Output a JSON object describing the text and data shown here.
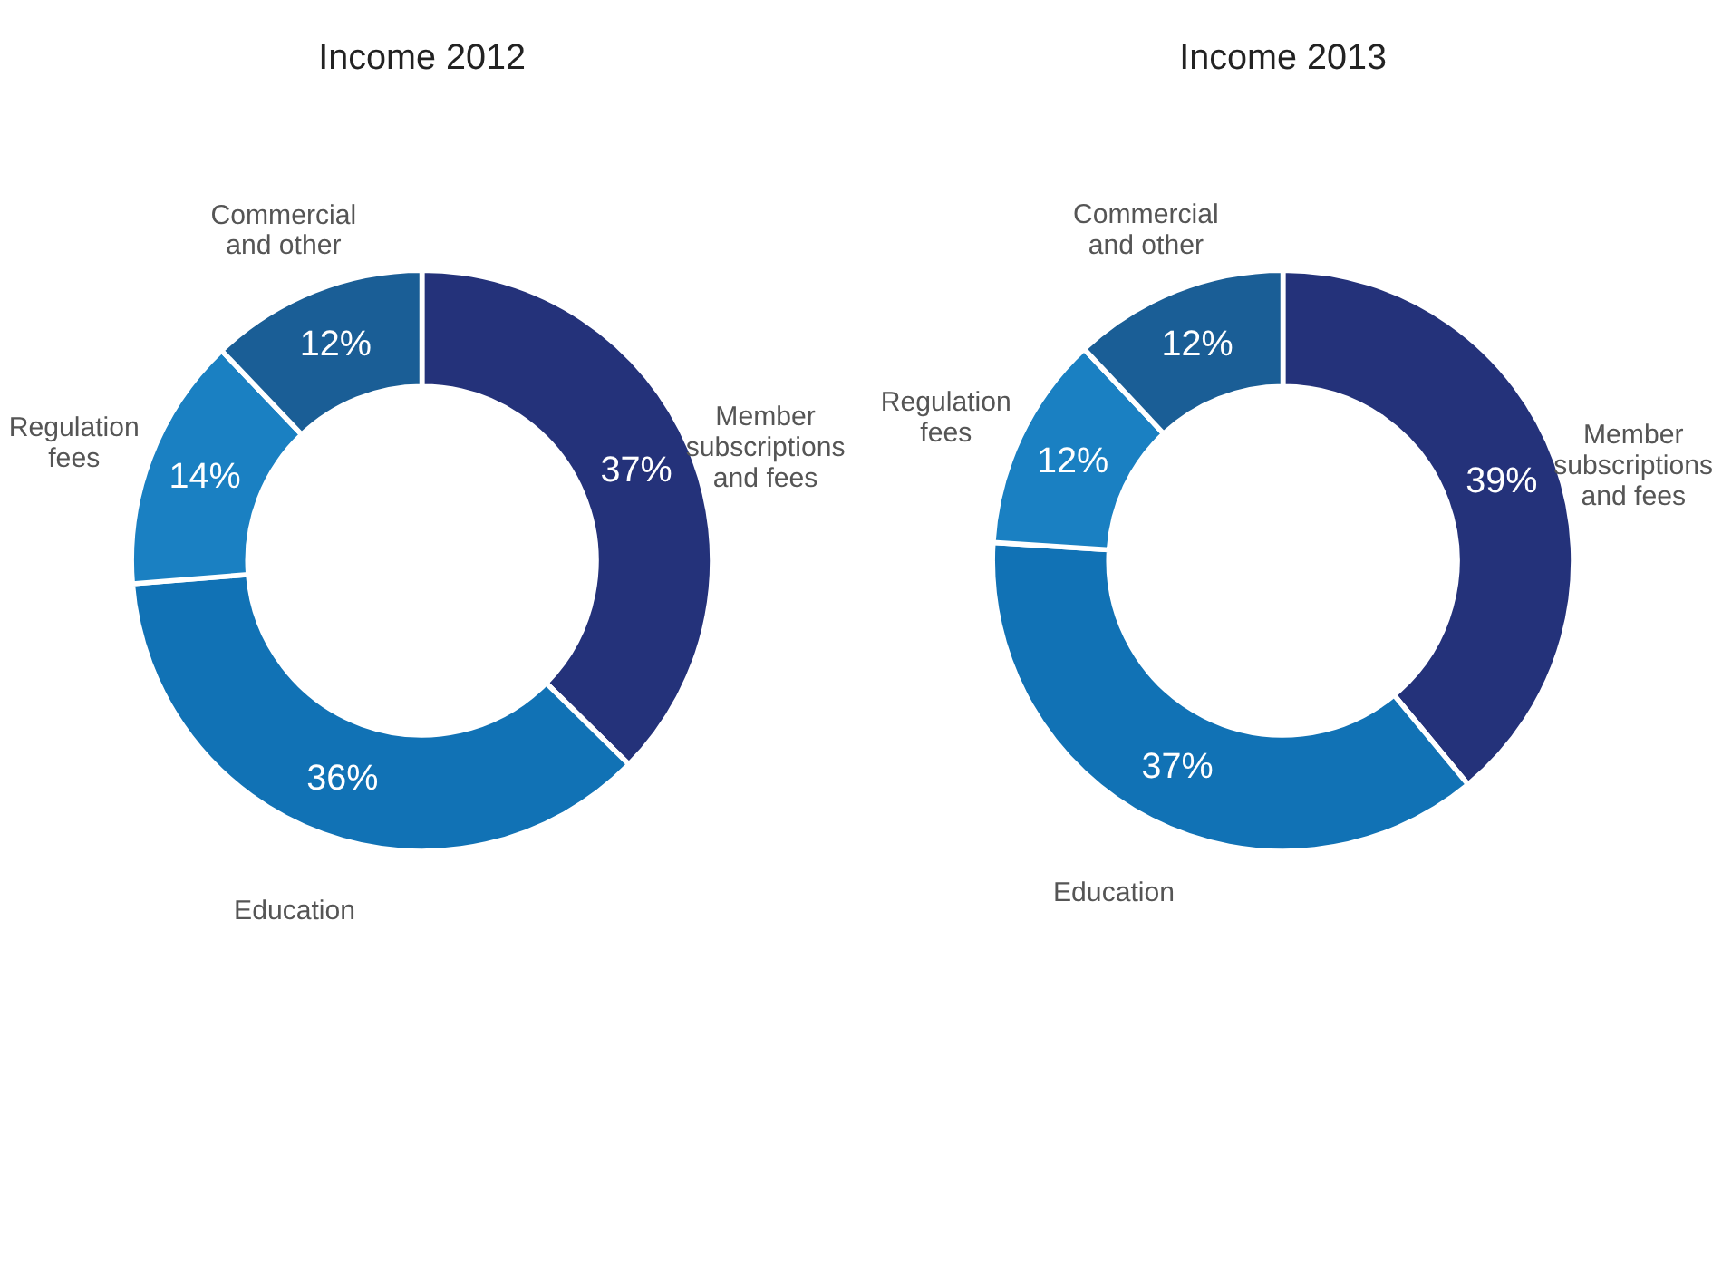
{
  "chart_data": [
    {
      "type": "donut",
      "title": "Income 2012",
      "categories": [
        "Member subscriptions and fees",
        "Education",
        "Regulation fees",
        "Commercial and other"
      ],
      "values": [
        37,
        36,
        14,
        12
      ],
      "value_labels": [
        "37%",
        "36%",
        "14%",
        "12%"
      ],
      "colors": [
        "#24327a",
        "#1172b5",
        "#1a80c2",
        "#1a5e96"
      ],
      "legend": false
    },
    {
      "type": "donut",
      "title": "Income 2013",
      "categories": [
        "Member subscriptions and fees",
        "Education",
        "Regulation fees",
        "Commercial and other"
      ],
      "values": [
        39,
        37,
        12,
        12
      ],
      "value_labels": [
        "39%",
        "37%",
        "12%",
        "12%"
      ],
      "colors": [
        "#24327a",
        "#1172b5",
        "#1a80c2",
        "#1a5e96"
      ],
      "legend": false
    }
  ]
}
